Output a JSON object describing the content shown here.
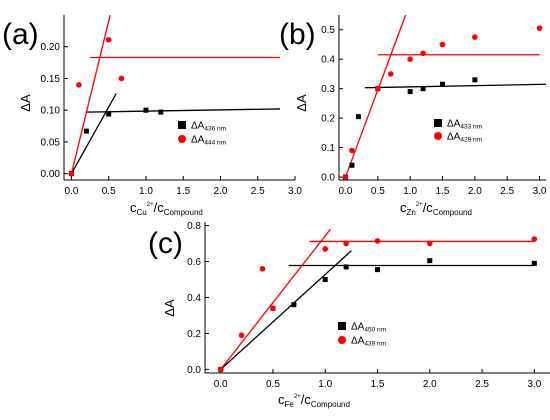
{
  "chart_data": [
    {
      "type": "scatter",
      "panel_label": "(a)",
      "xlabel": {
        "base": "c",
        "sub": "Cu",
        "sup": "2+",
        "tail": "/c",
        "tail_sub": "Compound"
      },
      "ylabel": "ΔA",
      "xlim": [
        -0.1,
        3.0
      ],
      "ylim": [
        -0.01,
        0.25
      ],
      "xticks": [
        "0.0",
        "0.5",
        "1.0",
        "1.5",
        "2.0",
        "2.5",
        "3.0"
      ],
      "xtick_values": [
        0,
        0.5,
        1.0,
        1.5,
        2.0,
        2.5,
        3.0
      ],
      "yticks": [
        "0.00",
        "0.05",
        "0.10",
        "0.15",
        "0.20"
      ],
      "ytick_values": [
        0,
        0.05,
        0.1,
        0.15,
        0.2
      ],
      "legend_position": "center-right",
      "series": [
        {
          "name": "ΔA436 nm",
          "legend_base": "ΔA",
          "legend_sub": "436 nm",
          "color": "#000000",
          "marker": "square",
          "x": [
            0,
            0.2,
            0.5,
            1.0,
            1.2
          ],
          "y": [
            0,
            0.067,
            0.094,
            0.1,
            0.097
          ],
          "fit_lines": [
            {
              "x": [
                0,
                0.6
              ],
              "y": [
                0,
                0.126
              ]
            },
            {
              "x": [
                0.2,
                2.8
              ],
              "y": [
                0.097,
                0.102
              ]
            }
          ]
        },
        {
          "name": "ΔA444 nm",
          "legend_base": "ΔA",
          "legend_sub": "444 nm",
          "color": "#ff0000",
          "marker": "circle",
          "x": [
            0,
            0.1,
            0.5,
            0.67
          ],
          "y": [
            0,
            0.14,
            0.211,
            0.15
          ],
          "fit_lines": [
            {
              "x": [
                0,
                0.52
              ],
              "y": [
                0,
                0.25
              ]
            },
            {
              "x": [
                0.25,
                2.8
              ],
              "y": [
                0.183,
                0.183
              ]
            }
          ]
        }
      ]
    },
    {
      "type": "scatter",
      "panel_label": "(b)",
      "xlabel": {
        "base": "c",
        "sub": "Zn",
        "sup": "2+",
        "tail": "/c",
        "tail_sub": "Compound"
      },
      "ylabel": "ΔA",
      "xlim": [
        -0.1,
        3.1
      ],
      "ylim": [
        -0.01,
        0.55
      ],
      "xticks": [
        "0.0",
        "0.5",
        "1.0",
        "1.5",
        "2.0",
        "2.5",
        "3.0"
      ],
      "xtick_values": [
        0,
        0.5,
        1.0,
        1.5,
        2.0,
        2.5,
        3.0
      ],
      "yticks": [
        "0.0",
        "0.1",
        "0.2",
        "0.3",
        "0.4",
        "0.5"
      ],
      "ytick_values": [
        0,
        0.1,
        0.2,
        0.3,
        0.4,
        0.5
      ],
      "legend_position": "center-right",
      "series": [
        {
          "name": "ΔA433 nm",
          "legend_base": "ΔA",
          "legend_sub": "433 nm",
          "color": "#000000",
          "marker": "square",
          "x": [
            0,
            0.1,
            0.2,
            0.5,
            1.0,
            1.2,
            1.5,
            2.0
          ],
          "y": [
            0,
            0.04,
            0.205,
            0.3,
            0.29,
            0.3,
            0.315,
            0.33
          ],
          "fit_lines": [
            {
              "x": [
                0.3,
                3.1
              ],
              "y": [
                0.303,
                0.315
              ]
            }
          ]
        },
        {
          "name": "ΔA429 nm",
          "legend_base": "ΔA",
          "legend_sub": "429 nm",
          "color": "#ff0000",
          "marker": "circle",
          "x": [
            0,
            0.1,
            0.5,
            0.7,
            1.0,
            1.2,
            1.5,
            2.0,
            3.0
          ],
          "y": [
            0,
            0.09,
            0.3,
            0.35,
            0.4,
            0.42,
            0.45,
            0.475,
            0.505
          ],
          "fit_lines": [
            {
              "x": [
                0,
                0.93
              ],
              "y": [
                0,
                0.55
              ]
            },
            {
              "x": [
                0.5,
                3.0
              ],
              "y": [
                0.415,
                0.415
              ]
            }
          ]
        }
      ]
    },
    {
      "type": "scatter",
      "panel_label": "(c)",
      "xlabel": {
        "base": "c",
        "sub": "Fe",
        "sup": "2+",
        "tail": "/c",
        "tail_sub": "Compound"
      },
      "ylabel": "ΔA",
      "xlim": [
        -0.15,
        3.15
      ],
      "ylim": [
        -0.02,
        0.82
      ],
      "xticks": [
        "0.0",
        "0.5",
        "1.0",
        "1.5",
        "2.0",
        "2.5",
        "3.0"
      ],
      "xtick_values": [
        0,
        0.5,
        1.0,
        1.5,
        2.0,
        2.5,
        3.0
      ],
      "yticks": [
        "0.0",
        "0.2",
        "0.4",
        "0.6",
        "0.8"
      ],
      "ytick_values": [
        0,
        0.2,
        0.4,
        0.6,
        0.8
      ],
      "legend_position": "bottom-right",
      "series": [
        {
          "name": "ΔA450 nm",
          "legend_base": "ΔA",
          "legend_sub": "450 nm",
          "color": "#000000",
          "marker": "square",
          "x": [
            0,
            0.5,
            0.7,
            1.0,
            1.2,
            1.5,
            2.0,
            3.0
          ],
          "y": [
            0,
            0.34,
            0.36,
            0.5,
            0.57,
            0.555,
            0.605,
            0.59
          ],
          "fit_lines": [
            {
              "x": [
                0,
                1.25
              ],
              "y": [
                0,
                0.66
              ]
            },
            {
              "x": [
                0.65,
                3.0
              ],
              "y": [
                0.578,
                0.578
              ]
            }
          ]
        },
        {
          "name": "ΔA439 nm",
          "legend_base": "ΔA",
          "legend_sub": "439 nm",
          "color": "#ff0000",
          "marker": "circle",
          "x": [
            0,
            0.2,
            0.4,
            0.5,
            1.0,
            1.2,
            1.5,
            2.0,
            3.0
          ],
          "y": [
            0,
            0.19,
            0.56,
            0.34,
            0.67,
            0.7,
            0.715,
            0.7,
            0.725
          ],
          "fit_lines": [
            {
              "x": [
                0,
                1.05
              ],
              "y": [
                0,
                0.78
              ]
            },
            {
              "x": [
                0.85,
                3.0
              ],
              "y": [
                0.712,
                0.712
              ]
            }
          ]
        }
      ]
    }
  ]
}
